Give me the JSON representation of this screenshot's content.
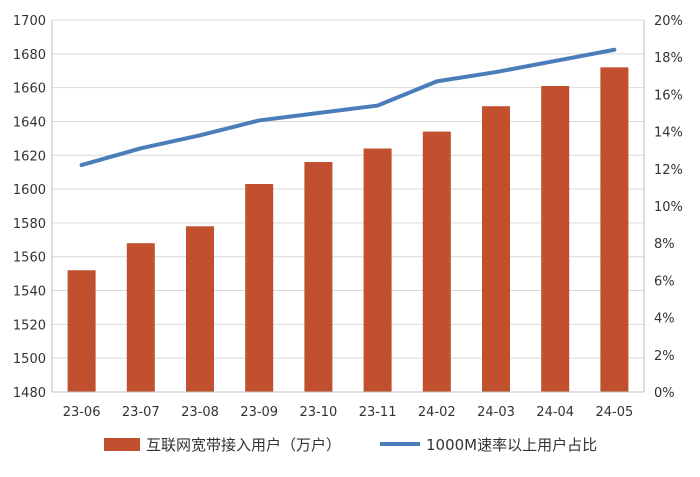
{
  "chart_data": {
    "type": "bar+line",
    "categories": [
      "23-06",
      "23-07",
      "23-08",
      "23-09",
      "23-10",
      "23-11",
      "24-02",
      "24-03",
      "24-04",
      "24-05"
    ],
    "series": [
      {
        "name": "互联网宽带接入用户（万户）",
        "type": "bar",
        "axis": "left",
        "color": "#C0502E",
        "values": [
          1552,
          1568,
          1578,
          1603,
          1616,
          1624,
          1634,
          1649,
          1661,
          1672
        ]
      },
      {
        "name": "1000M速率以上用户占比",
        "type": "line",
        "axis": "right",
        "color": "#4A7EBB",
        "values": [
          12.2,
          13.1,
          13.8,
          14.6,
          15.0,
          15.4,
          16.7,
          17.2,
          17.8,
          18.4
        ]
      }
    ],
    "y_left": {
      "min": 1480,
      "max": 1700,
      "step": 20,
      "ticks": [
        "1480",
        "1500",
        "1520",
        "1540",
        "1560",
        "1580",
        "1600",
        "1620",
        "1640",
        "1660",
        "1680",
        "1700"
      ]
    },
    "y_right": {
      "min": 0,
      "max": 20,
      "step": 2,
      "ticks": [
        "0%",
        "2%",
        "4%",
        "6%",
        "8%",
        "10%",
        "12%",
        "14%",
        "16%",
        "18%",
        "20%"
      ]
    },
    "grid": true,
    "legend": "bottom"
  }
}
